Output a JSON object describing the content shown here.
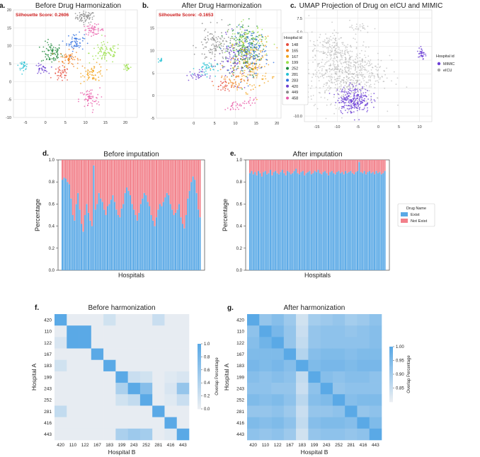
{
  "colors": {
    "h148": "#e64b3c",
    "h165": "#f07f1e",
    "h167": "#f2a31a",
    "h199": "#9be04a",
    "h252": "#1f8a3b",
    "h281": "#25c2d4",
    "h283": "#2f6fe0",
    "h420": "#6b3fd1",
    "h449": "#8a8a8a",
    "h458": "#e85aa8",
    "mimic": "#6c3fd6",
    "eicu": "#a9a9a9",
    "exist": "#5aa9e6",
    "notexist": "#f2808a",
    "silhouette": "#cc1b1b",
    "grid": "#e6e6e6"
  },
  "chart_data": [
    {
      "panel": "a.",
      "type": "scatter",
      "title": "Before Drug Harmonization",
      "annotation": "Silhouette Score: 0.2606",
      "xlim": [
        -8,
        23
      ],
      "ylim": [
        -10,
        20
      ],
      "xticks": [
        "-5",
        "0",
        "5",
        "10",
        "15",
        "20"
      ],
      "yticks": [
        "-10",
        "-5",
        "0",
        "5",
        "10",
        "15",
        "20"
      ],
      "clusters": [
        {
          "name": "449",
          "x": 10,
          "y": 18,
          "sx": 1.2,
          "sy": 0.8,
          "n": 70
        },
        {
          "name": "252",
          "x": 1.5,
          "y": 8,
          "sx": 1.3,
          "sy": 1.5,
          "n": 80
        },
        {
          "name": "165",
          "x": 6,
          "y": 6.5,
          "sx": 1.2,
          "sy": 1.1,
          "n": 60
        },
        {
          "name": "283",
          "x": 7.5,
          "y": 11,
          "sx": 1.1,
          "sy": 1.2,
          "n": 60
        },
        {
          "name": "458",
          "x": 12,
          "y": 14.5,
          "sx": 1.3,
          "sy": 0.7,
          "n": 50
        },
        {
          "name": "199",
          "x": 15,
          "y": 8,
          "sx": 2.0,
          "sy": 1.5,
          "n": 80
        },
        {
          "name": "148",
          "x": 4,
          "y": 2,
          "sx": 1.0,
          "sy": 1.0,
          "n": 40
        },
        {
          "name": "167",
          "x": 12,
          "y": 2.5,
          "sx": 1.4,
          "sy": 1.2,
          "n": 60
        },
        {
          "name": "281",
          "x": -5.5,
          "y": 4.5,
          "sx": 0.6,
          "sy": 0.6,
          "n": 30
        },
        {
          "name": "420",
          "x": -1,
          "y": 3.5,
          "sx": 0.8,
          "sy": 0.7,
          "n": 30
        },
        {
          "name": "458",
          "x": 11,
          "y": -5,
          "sx": 1.3,
          "sy": 1.6,
          "n": 60
        },
        {
          "name": "199",
          "x": 20.5,
          "y": 4,
          "sx": 0.5,
          "sy": 0.6,
          "n": 20
        }
      ]
    },
    {
      "panel": "b.",
      "type": "scatter",
      "title": "After Drug Harmonization",
      "annotation": "Silhouette Score: -0.1653",
      "xlim": [
        -9,
        21
      ],
      "ylim": [
        -5,
        19
      ],
      "xticks": [
        "0",
        "5",
        "10",
        "15",
        "20"
      ],
      "yticks": [
        "-5",
        "0",
        "5",
        "10",
        "15"
      ],
      "legend_title": "Hospital id",
      "legend": [
        "148",
        "165",
        "167",
        "199",
        "252",
        "281",
        "283",
        "420",
        "449",
        "458"
      ],
      "clusters": [
        {
          "name": "252",
          "x": 12,
          "y": 10,
          "sx": 2.0,
          "sy": 3.0,
          "n": 180
        },
        {
          "name": "167",
          "x": 14,
          "y": 7,
          "sx": 2.3,
          "sy": 3.0,
          "n": 160
        },
        {
          "name": "283",
          "x": 14,
          "y": 10,
          "sx": 2.0,
          "sy": 2.5,
          "n": 120
        },
        {
          "name": "199",
          "x": 12.5,
          "y": 12,
          "sx": 2.5,
          "sy": 2.0,
          "n": 90
        },
        {
          "name": "420",
          "x": 10,
          "y": 8,
          "sx": 2.0,
          "sy": 2.5,
          "n": 90
        },
        {
          "name": "449",
          "x": 5,
          "y": 11,
          "sx": 2.0,
          "sy": 2.0,
          "n": 120
        },
        {
          "name": "165",
          "x": 10,
          "y": 4,
          "sx": 2.0,
          "sy": 1.5,
          "n": 60
        },
        {
          "name": "281",
          "x": 3,
          "y": 6,
          "sx": 1.3,
          "sy": 0.8,
          "n": 40
        },
        {
          "name": "420",
          "x": 0.5,
          "y": 4.5,
          "sx": 1.2,
          "sy": 0.6,
          "n": 30
        },
        {
          "name": "458",
          "x": 9.5,
          "y": -2.5,
          "sx": 1.0,
          "sy": 0.6,
          "n": 25
        },
        {
          "name": "458",
          "x": 13.5,
          "y": -1.5,
          "sx": 0.7,
          "sy": 0.5,
          "n": 15
        },
        {
          "name": "148",
          "x": 7,
          "y": 2,
          "sx": 1.0,
          "sy": 0.7,
          "n": 25
        },
        {
          "name": "281",
          "x": -8,
          "y": 8,
          "sx": 0.3,
          "sy": 0.4,
          "n": 10
        }
      ]
    },
    {
      "panel": "c.",
      "type": "scatter",
      "title": "UMAP Projection of Drug on eICU and MIMIC",
      "xlim": [
        -18,
        13
      ],
      "ylim": [
        -11,
        9
      ],
      "xticks": [
        "-15",
        "-10",
        "-5",
        "0",
        "5",
        "10"
      ],
      "yticks": [
        "-10.0",
        "-7.5",
        "-5.0",
        "-2.5",
        "0.0",
        "2.5",
        "5.0",
        "7.5"
      ],
      "legend_title": "Hospital id",
      "legend": [
        "MIMIC",
        "eICU"
      ],
      "clusters": [
        {
          "name": "eicu",
          "x": -8,
          "y": -2,
          "sx": 4.5,
          "sy": 2.8,
          "n": 650
        },
        {
          "name": "eicu",
          "x": -12,
          "y": 2.5,
          "sx": 2.0,
          "sy": 1.2,
          "n": 80
        },
        {
          "name": "eicu",
          "x": -5,
          "y": 6,
          "sx": 1.0,
          "sy": 0.6,
          "n": 25
        },
        {
          "name": "mimic",
          "x": -6,
          "y": -7,
          "sx": 2.0,
          "sy": 1.2,
          "n": 250
        },
        {
          "name": "mimic",
          "x": 10.5,
          "y": 1.2,
          "sx": 0.4,
          "sy": 0.7,
          "n": 35
        }
      ]
    },
    {
      "panel": "d.",
      "type": "bar",
      "stacked": true,
      "title": "Before imputation",
      "xlabel": "Hospitals",
      "ylabel": "Percentage",
      "ylim": [
        0,
        1
      ],
      "yticks": [
        "0.0",
        "0.2",
        "0.4",
        "0.6",
        "0.8",
        "1.0"
      ],
      "series": [
        {
          "name": "Exist",
          "values": [
            0.82,
            0.84,
            0.83,
            0.8,
            0.78,
            0.65,
            0.5,
            0.45,
            0.6,
            0.7,
            0.55,
            0.42,
            0.35,
            0.5,
            0.6,
            0.52,
            0.45,
            0.4,
            0.95,
            0.55,
            0.6,
            0.7,
            0.65,
            0.62,
            0.55,
            0.5,
            0.58,
            0.6,
            0.64,
            0.68,
            0.62,
            0.55,
            0.5,
            0.48,
            0.56,
            0.6,
            0.7,
            0.75,
            0.72,
            0.68,
            0.6,
            0.55,
            0.5,
            0.45,
            0.52,
            0.6,
            0.65,
            0.7,
            0.68,
            0.62,
            0.58,
            0.5,
            0.45,
            0.4,
            0.48,
            0.55,
            0.6,
            0.58,
            0.62,
            0.66,
            0.7,
            0.68,
            0.6,
            0.55,
            0.5,
            0.52,
            0.55,
            0.6,
            0.48,
            0.42,
            0.38,
            0.5,
            0.65,
            0.72,
            0.8,
            0.85,
            0.82,
            0.7,
            0.55,
            0.48
          ]
        },
        {
          "name": "Not Exist",
          "values": [
            0.18,
            0.16,
            0.17,
            0.2,
            0.22,
            0.35,
            0.5,
            0.55,
            0.4,
            0.3,
            0.45,
            0.58,
            0.65,
            0.5,
            0.4,
            0.48,
            0.55,
            0.6,
            0.05,
            0.45,
            0.4,
            0.3,
            0.35,
            0.38,
            0.45,
            0.5,
            0.42,
            0.4,
            0.36,
            0.32,
            0.38,
            0.45,
            0.5,
            0.52,
            0.44,
            0.4,
            0.3,
            0.25,
            0.28,
            0.32,
            0.4,
            0.45,
            0.5,
            0.55,
            0.48,
            0.4,
            0.35,
            0.3,
            0.32,
            0.38,
            0.42,
            0.5,
            0.55,
            0.6,
            0.52,
            0.45,
            0.4,
            0.42,
            0.38,
            0.34,
            0.3,
            0.32,
            0.4,
            0.45,
            0.5,
            0.48,
            0.45,
            0.4,
            0.52,
            0.58,
            0.62,
            0.5,
            0.35,
            0.28,
            0.2,
            0.15,
            0.18,
            0.3,
            0.45,
            0.52
          ]
        }
      ]
    },
    {
      "panel": "e.",
      "type": "bar",
      "stacked": true,
      "title": "After imputation",
      "xlabel": "Hospitals",
      "ylabel": "Percentage",
      "ylim": [
        0,
        1
      ],
      "yticks": [
        "0.0",
        "0.2",
        "0.4",
        "0.6",
        "0.8",
        "1.0"
      ],
      "legend_title": "Drug Name",
      "legend": [
        "Exist",
        "Not Exist"
      ],
      "series": [
        {
          "name": "Exist",
          "values": [
            0.88,
            0.9,
            0.87,
            0.89,
            0.86,
            0.9,
            0.88,
            0.85,
            0.89,
            0.9,
            0.87,
            0.88,
            0.91,
            0.86,
            0.89,
            0.9,
            0.88,
            0.87,
            0.89,
            0.91,
            0.88,
            0.86,
            0.9,
            0.89,
            0.87,
            0.88,
            0.9,
            0.92,
            0.88,
            0.87,
            0.89,
            0.9,
            0.86,
            0.88,
            0.89,
            0.9,
            0.87,
            0.88,
            0.9,
            0.89,
            0.91,
            0.88,
            0.87,
            0.89,
            0.9,
            0.88,
            0.86,
            0.89,
            0.9,
            0.88,
            0.87,
            0.89,
            0.9,
            0.88,
            0.89,
            0.87,
            0.9,
            0.88,
            0.89,
            0.9,
            0.88,
            0.87,
            0.89,
            0.9,
            0.98,
            0.89,
            0.88,
            0.9,
            0.87,
            0.89,
            0.9,
            0.88,
            0.89,
            0.87,
            0.9,
            0.88,
            0.89,
            0.87,
            0.88,
            0.9
          ]
        },
        {
          "name": "Not Exist",
          "values": [
            0.12,
            0.1,
            0.13,
            0.11,
            0.14,
            0.1,
            0.12,
            0.15,
            0.11,
            0.1,
            0.13,
            0.12,
            0.09,
            0.14,
            0.11,
            0.1,
            0.12,
            0.13,
            0.11,
            0.09,
            0.12,
            0.14,
            0.1,
            0.11,
            0.13,
            0.12,
            0.1,
            0.08,
            0.12,
            0.13,
            0.11,
            0.1,
            0.14,
            0.12,
            0.11,
            0.1,
            0.13,
            0.12,
            0.1,
            0.11,
            0.09,
            0.12,
            0.13,
            0.11,
            0.1,
            0.12,
            0.14,
            0.11,
            0.1,
            0.12,
            0.13,
            0.11,
            0.1,
            0.12,
            0.11,
            0.13,
            0.1,
            0.12,
            0.11,
            0.1,
            0.12,
            0.13,
            0.11,
            0.1,
            0.02,
            0.11,
            0.12,
            0.1,
            0.13,
            0.11,
            0.1,
            0.12,
            0.11,
            0.13,
            0.1,
            0.12,
            0.11,
            0.13,
            0.12,
            0.1
          ]
        }
      ]
    },
    {
      "panel": "f.",
      "type": "heatmap",
      "title": "Before harmonization",
      "xlabel": "Hospital B",
      "ylabel": "Hospital A",
      "labels": [
        "420",
        "110",
        "122",
        "167",
        "183",
        "199",
        "243",
        "252",
        "281",
        "416",
        "443"
      ],
      "colorbar_label": "Overlap Percentage",
      "colorbar_ticks": [
        "0.0",
        "0.2",
        "0.4",
        "0.6",
        "0.8",
        "1.0"
      ],
      "vmin": 0,
      "vmax": 1,
      "matrix": [
        [
          1.0,
          0.05,
          0.05,
          0.05,
          0.2,
          0.05,
          0.05,
          0.05,
          0.25,
          0.05,
          0.05
        ],
        [
          0.05,
          1.0,
          1.0,
          0.05,
          0.05,
          0.05,
          0.05,
          0.05,
          0.05,
          0.05,
          0.05
        ],
        [
          0.15,
          1.0,
          1.0,
          0.05,
          0.05,
          0.05,
          0.05,
          0.05,
          0.05,
          0.05,
          0.05
        ],
        [
          0.05,
          0.05,
          0.05,
          1.0,
          0.05,
          0.05,
          0.05,
          0.05,
          0.05,
          0.05,
          0.05
        ],
        [
          0.2,
          0.05,
          0.05,
          0.05,
          1.0,
          0.05,
          0.05,
          0.05,
          0.05,
          0.05,
          0.05
        ],
        [
          0.05,
          0.05,
          0.05,
          0.05,
          0.05,
          1.0,
          0.25,
          0.2,
          0.05,
          0.1,
          0.15
        ],
        [
          0.05,
          0.05,
          0.05,
          0.05,
          0.05,
          0.45,
          1.0,
          0.7,
          0.05,
          0.15,
          0.6
        ],
        [
          0.05,
          0.05,
          0.05,
          0.05,
          0.05,
          0.2,
          0.3,
          1.0,
          0.05,
          0.1,
          0.25
        ],
        [
          0.3,
          0.05,
          0.05,
          0.05,
          0.05,
          0.05,
          0.05,
          0.05,
          1.0,
          0.05,
          0.05
        ],
        [
          0.05,
          0.05,
          0.05,
          0.05,
          0.05,
          0.05,
          0.05,
          0.05,
          0.05,
          1.0,
          0.05
        ],
        [
          0.05,
          0.05,
          0.05,
          0.05,
          0.05,
          0.45,
          0.55,
          0.5,
          0.05,
          0.1,
          1.0
        ]
      ]
    },
    {
      "panel": "g.",
      "type": "heatmap",
      "title": "After harmonization",
      "xlabel": "Hospital B",
      "ylabel": "Hospital A",
      "labels": [
        "420",
        "110",
        "122",
        "167",
        "183",
        "199",
        "243",
        "252",
        "281",
        "416",
        "443"
      ],
      "colorbar_label": "Overlap Percentage",
      "colorbar_ticks": [
        "0.85",
        "0.90",
        "0.95",
        "1.00"
      ],
      "vmin": 0.8,
      "vmax": 1.0,
      "matrix": [
        [
          1.0,
          0.92,
          0.94,
          0.91,
          0.84,
          0.9,
          0.91,
          0.92,
          0.9,
          0.91,
          0.93
        ],
        [
          0.93,
          1.0,
          0.96,
          0.92,
          0.85,
          0.92,
          0.93,
          0.93,
          0.92,
          0.93,
          0.94
        ],
        [
          0.94,
          0.97,
          1.0,
          0.92,
          0.86,
          0.92,
          0.93,
          0.93,
          0.93,
          0.93,
          0.94
        ],
        [
          0.95,
          0.95,
          0.95,
          1.0,
          0.88,
          0.94,
          0.95,
          0.95,
          0.94,
          0.95,
          0.95
        ],
        [
          0.96,
          0.95,
          0.96,
          0.94,
          1.0,
          0.95,
          0.96,
          0.96,
          0.95,
          0.96,
          0.96
        ],
        [
          0.94,
          0.93,
          0.94,
          0.93,
          0.86,
          1.0,
          0.94,
          0.93,
          0.94,
          0.94,
          0.93
        ],
        [
          0.93,
          0.93,
          0.92,
          0.92,
          0.85,
          0.93,
          1.0,
          0.92,
          0.93,
          0.93,
          0.93
        ],
        [
          0.95,
          0.94,
          0.95,
          0.93,
          0.87,
          0.94,
          0.95,
          1.0,
          0.94,
          0.95,
          0.95
        ],
        [
          0.92,
          0.92,
          0.93,
          0.91,
          0.85,
          0.92,
          0.92,
          0.93,
          1.0,
          0.92,
          0.93
        ],
        [
          0.95,
          0.94,
          0.95,
          0.93,
          0.86,
          0.94,
          0.95,
          0.95,
          0.94,
          1.0,
          0.95
        ],
        [
          0.93,
          0.92,
          0.93,
          0.91,
          0.84,
          0.92,
          0.93,
          0.93,
          0.92,
          0.93,
          1.0
        ]
      ]
    }
  ]
}
